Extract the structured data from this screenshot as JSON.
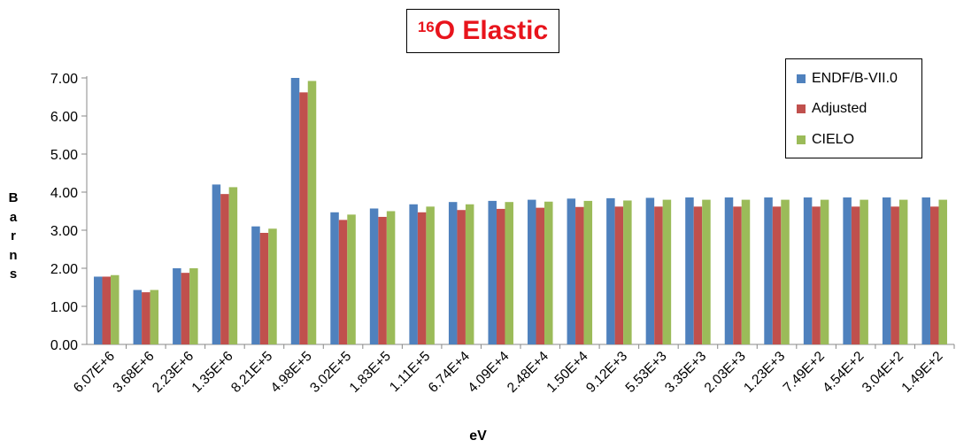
{
  "chart_data": {
    "type": "bar",
    "title_sup": "16",
    "title_main": "O Elastic",
    "xlabel": "eV",
    "ylabel_letters": [
      "B",
      "a",
      "r",
      "n",
      "s"
    ],
    "ylim": [
      0,
      7
    ],
    "yticks": [
      "0.00",
      "1.00",
      "2.00",
      "3.00",
      "4.00",
      "5.00",
      "6.00",
      "7.00"
    ],
    "legend_position": "top-right",
    "categories": [
      "6.07E+6",
      "3.68E+6",
      "2.23E+6",
      "1.35E+6",
      "8.21E+5",
      "4.98E+5",
      "3.02E+5",
      "1.83E+5",
      "1.11E+5",
      "6.74E+4",
      "4.09E+4",
      "2.48E+4",
      "1.50E+4",
      "9.12E+3",
      "5.53E+3",
      "3.35E+3",
      "2.03E+3",
      "1.23E+3",
      "7.49E+2",
      "4.54E+2",
      "3.04E+2",
      "1.49E+2"
    ],
    "series": [
      {
        "name": "ENDF/B-VII.0",
        "color": "#4f81bd",
        "values": [
          1.78,
          1.43,
          2.0,
          4.2,
          3.1,
          7.0,
          3.47,
          3.57,
          3.68,
          3.74,
          3.77,
          3.8,
          3.83,
          3.84,
          3.85,
          3.86,
          3.86,
          3.86,
          3.86,
          3.86,
          3.86,
          3.86
        ]
      },
      {
        "name": "Adjusted",
        "color": "#c0504d",
        "values": [
          1.78,
          1.37,
          1.88,
          3.95,
          2.93,
          6.62,
          3.27,
          3.35,
          3.47,
          3.53,
          3.56,
          3.59,
          3.61,
          3.62,
          3.62,
          3.62,
          3.62,
          3.62,
          3.62,
          3.62,
          3.62,
          3.62
        ]
      },
      {
        "name": "CIELO",
        "color": "#9bbb59",
        "values": [
          1.82,
          1.43,
          2.0,
          4.13,
          3.04,
          6.92,
          3.41,
          3.5,
          3.62,
          3.68,
          3.74,
          3.75,
          3.77,
          3.78,
          3.8,
          3.8,
          3.8,
          3.8,
          3.8,
          3.8,
          3.8,
          3.8
        ]
      }
    ]
  }
}
